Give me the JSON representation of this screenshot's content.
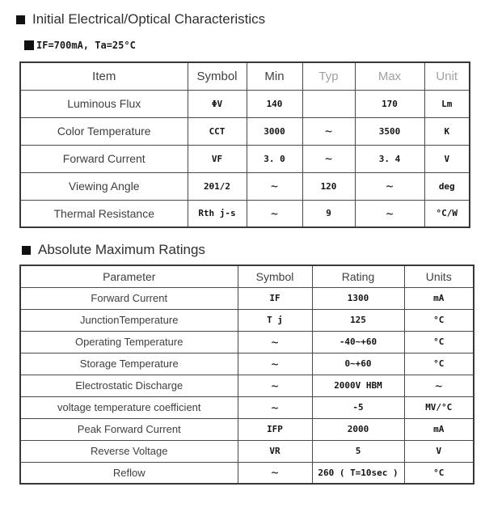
{
  "colors": {
    "background": "#ffffff",
    "text_primary": "#2f2f2f",
    "text_data": "#151515",
    "border": "#4a4a4a",
    "faded_header": "#a0a0a0"
  },
  "section1": {
    "title": "Initial Electrical/Optical Characteristics",
    "condition": "IF=700mA, Ta=25°C",
    "table": {
      "columns": [
        "Item",
        "Symbol",
        "Min",
        "Typ",
        "Max",
        "Unit"
      ],
      "rows": [
        [
          "Luminous Flux",
          "ΦV",
          "140",
          "",
          "170",
          "Lm"
        ],
        [
          "Color Temperature",
          "CCT",
          "3000",
          "~",
          "3500",
          "K"
        ],
        [
          "Forward Current",
          "VF",
          "3. 0",
          "~",
          "3. 4",
          "V"
        ],
        [
          "Viewing Angle",
          "2θ1/2",
          "~",
          "120",
          "~",
          "deg"
        ],
        [
          "Thermal Resistance",
          "Rth j-s",
          "~",
          "9",
          "~",
          "°C/W"
        ]
      ]
    }
  },
  "section2": {
    "title": "Absolute Maximum Ratings",
    "table": {
      "columns": [
        "Parameter",
        "Symbol",
        "Rating",
        "Units"
      ],
      "rows": [
        [
          "Forward Current",
          "IF",
          "1300",
          "mA"
        ],
        [
          "JunctionTemperature",
          "T j",
          "125",
          "°C"
        ],
        [
          "Operating Temperature",
          "~",
          "-40~+60",
          "°C"
        ],
        [
          "Storage Temperature",
          "~",
          "0~+60",
          "°C"
        ],
        [
          "Electrostatic Discharge",
          "~",
          "2000V HBM",
          "~"
        ],
        [
          "voltage temperature coefficient",
          "~",
          "-5",
          "MV/°C"
        ],
        [
          "Peak Forward Current",
          "IFP",
          "2000",
          "mA"
        ],
        [
          "Reverse Voltage",
          "VR",
          "5",
          "V"
        ],
        [
          "Reflow",
          "~",
          "260 ( T=10sec )",
          "°C"
        ]
      ]
    }
  }
}
